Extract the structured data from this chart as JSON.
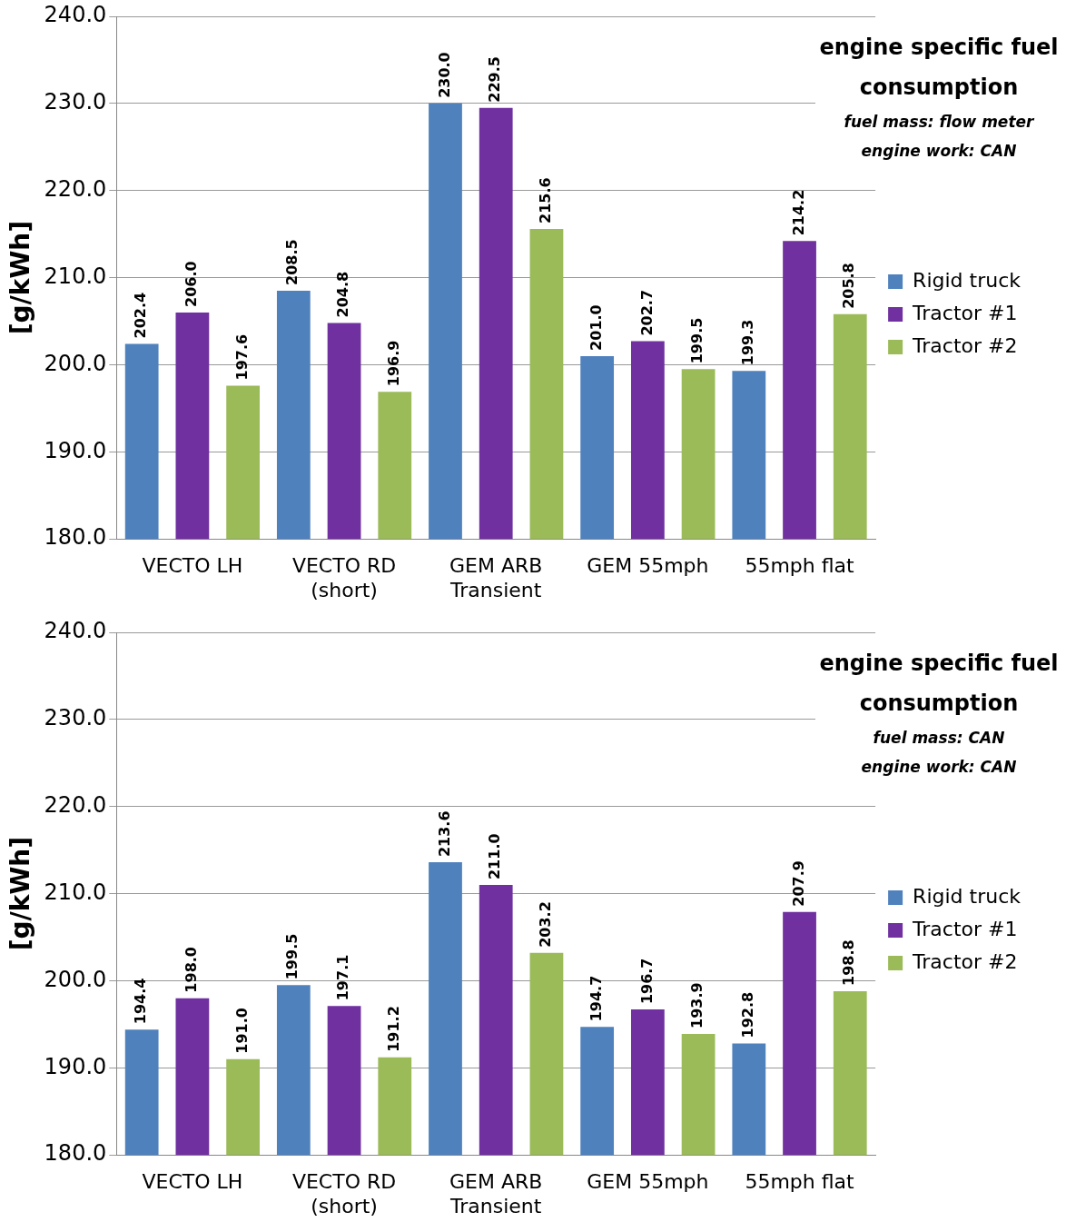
{
  "chart_data": [
    {
      "type": "bar",
      "title": "engine specific fuel consumption",
      "subtitle": "fuel mass: flow meter\nengine work: CAN",
      "ylabel": "[g/kWh]",
      "categories": [
        "VECTO LH",
        "VECTO RD (short)",
        "GEM ARB Transient",
        "GEM 55mph",
        "55mph flat"
      ],
      "series": [
        {
          "name": "Rigid truck",
          "color": "#4f81bd",
          "values": [
            202.4,
            208.5,
            230.0,
            201.0,
            199.3
          ],
          "value_labels": [
            "202.4",
            "208.5",
            "230.0",
            "201.0",
            "199.3"
          ]
        },
        {
          "name": "Tractor #1",
          "color": "#7030a0",
          "values": [
            206.0,
            204.8,
            229.5,
            202.7,
            214.2
          ],
          "value_labels": [
            "206.0",
            "204.8",
            "229.5",
            "202.7",
            "214.2"
          ]
        },
        {
          "name": "Tractor #2",
          "color": "#9bbb59",
          "values": [
            197.6,
            196.9,
            215.6,
            199.5,
            205.8
          ],
          "value_labels": [
            "197.6",
            "196.9",
            "215.6",
            "199.5",
            "205.8"
          ]
        }
      ],
      "ylim": [
        180,
        240
      ],
      "yticks": [
        {
          "value": 180,
          "label": "180.0"
        },
        {
          "value": 190,
          "label": "190.0"
        },
        {
          "value": 200,
          "label": "200.0"
        },
        {
          "value": 210,
          "label": "210.0"
        },
        {
          "value": 220,
          "label": "220.0"
        },
        {
          "value": 230,
          "label": "230.0"
        },
        {
          "value": 240,
          "label": "240.0"
        }
      ],
      "grid": "y",
      "legend": "right"
    },
    {
      "type": "bar",
      "title": "engine specific fuel consumption",
      "subtitle": "fuel mass: CAN\nengine work: CAN",
      "ylabel": "[g/kWh]",
      "categories": [
        "VECTO LH",
        "VECTO RD (short)",
        "GEM ARB Transient",
        "GEM 55mph",
        "55mph flat"
      ],
      "series": [
        {
          "name": "Rigid truck",
          "color": "#4f81bd",
          "values": [
            194.4,
            199.5,
            213.6,
            194.7,
            192.8
          ],
          "value_labels": [
            "194.4",
            "199.5",
            "213.6",
            "194.7",
            "192.8"
          ]
        },
        {
          "name": "Tractor #1",
          "color": "#7030a0",
          "values": [
            198.0,
            197.1,
            211.0,
            196.7,
            207.9
          ],
          "value_labels": [
            "198.0",
            "197.1",
            "211.0",
            "196.7",
            "207.9"
          ]
        },
        {
          "name": "Tractor #2",
          "color": "#9bbb59",
          "values": [
            191.0,
            191.2,
            203.2,
            193.9,
            198.8
          ],
          "value_labels": [
            "191.0",
            "191.2",
            "203.2",
            "193.9",
            "198.8"
          ]
        }
      ],
      "ylim": [
        180,
        240
      ],
      "yticks": [
        {
          "value": 180,
          "label": "180.0"
        },
        {
          "value": 190,
          "label": "190.0"
        },
        {
          "value": 200,
          "label": "200.0"
        },
        {
          "value": 210,
          "label": "210.0"
        },
        {
          "value": 220,
          "label": "220.0"
        },
        {
          "value": 230,
          "label": "230.0"
        },
        {
          "value": 240,
          "label": "240.0"
        }
      ],
      "grid": "y",
      "legend": "right"
    }
  ]
}
